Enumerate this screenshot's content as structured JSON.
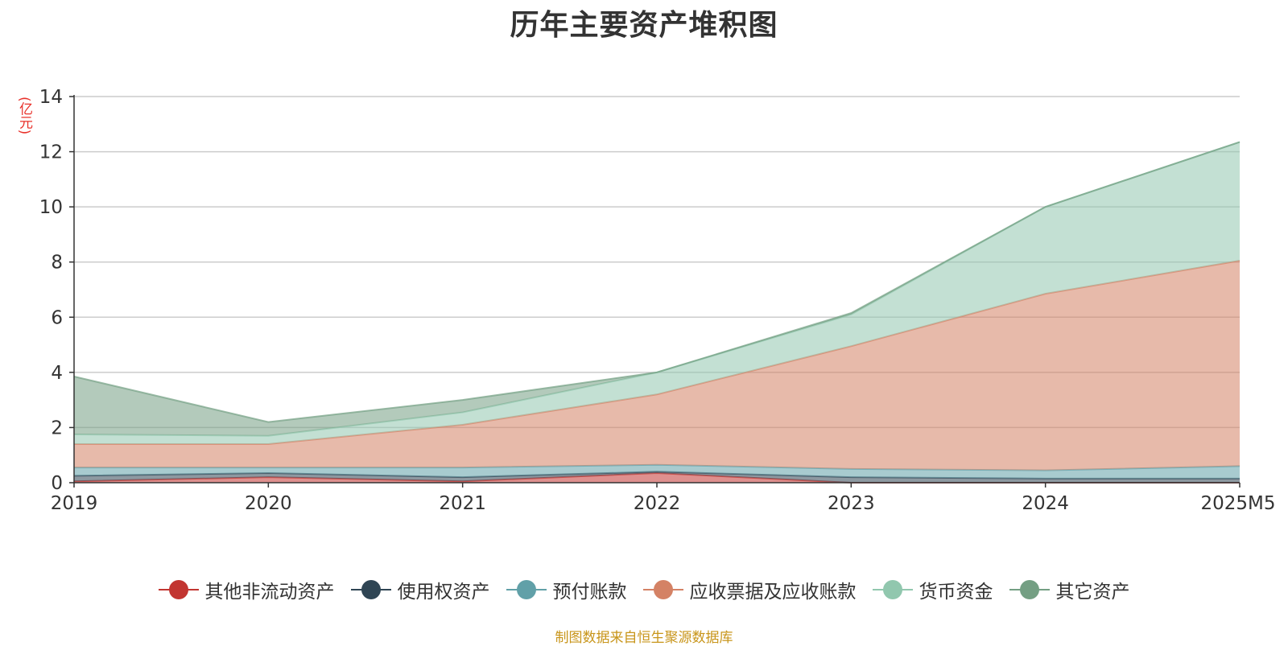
{
  "chart_data": {
    "type": "area",
    "stacked": true,
    "title": "历年主要资产堆积图",
    "y_unit": "(亿元)",
    "x": [
      "2019",
      "2020",
      "2021",
      "2022",
      "2023",
      "2024",
      "2025M5"
    ],
    "ylim": [
      0,
      14
    ],
    "y_ticks": [
      "0",
      "2",
      "4",
      "6",
      "8",
      "10",
      "12",
      "14"
    ],
    "grid": true,
    "legend_position": "bottom",
    "series": [
      {
        "name": "其他非流动资产",
        "color": "#c23531",
        "values": [
          0.05,
          0.2,
          0.05,
          0.35,
          0.0,
          0.0,
          0.0
        ]
      },
      {
        "name": "使用权资产",
        "color": "#2f4554",
        "values": [
          0.2,
          0.15,
          0.15,
          0.05,
          0.2,
          0.15,
          0.15
        ]
      },
      {
        "name": "预付账款",
        "color": "#61a0a8",
        "values": [
          0.3,
          0.2,
          0.35,
          0.25,
          0.3,
          0.3,
          0.45
        ]
      },
      {
        "name": "应收票据及应收账款",
        "color": "#d48265",
        "values": [
          0.85,
          0.85,
          1.55,
          2.55,
          4.45,
          6.4,
          7.45
        ]
      },
      {
        "name": "货币资金",
        "color": "#91c7ae",
        "values": [
          0.35,
          0.3,
          0.45,
          0.8,
          1.15,
          3.15,
          4.3
        ]
      },
      {
        "name": "其它资产",
        "color": "#749f83",
        "values": [
          2.1,
          0.5,
          0.45,
          0.0,
          0.05,
          0.0,
          0.0
        ]
      }
    ]
  },
  "source_note": "制图数据来自恒生聚源数据库"
}
